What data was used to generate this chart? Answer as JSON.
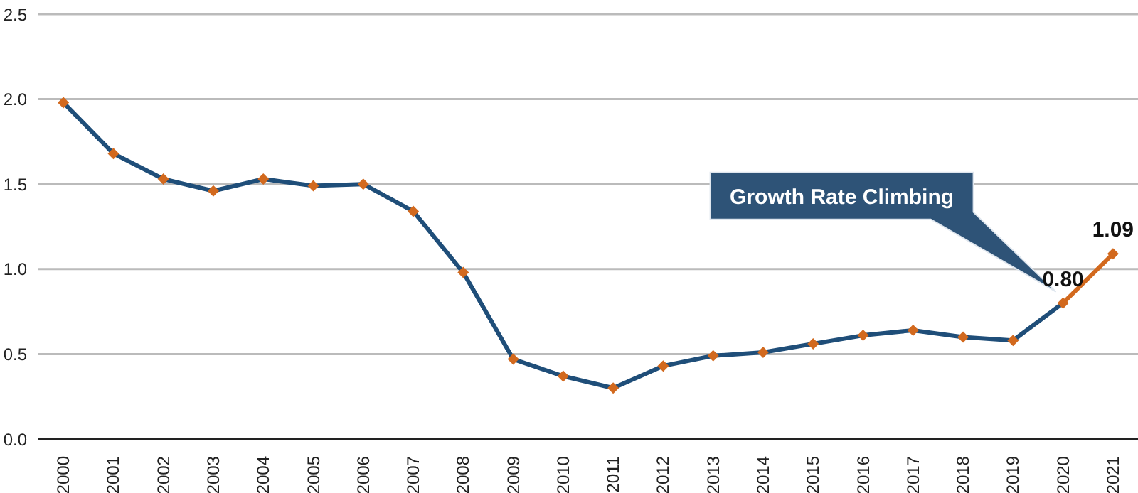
{
  "chart_data": {
    "type": "line",
    "categories": [
      "2000",
      "2001",
      "2002",
      "2003",
      "2004",
      "2005",
      "2006",
      "2007",
      "2008",
      "2009",
      "2010",
      "2011",
      "2012",
      "2013",
      "2014",
      "2015",
      "2016",
      "2017",
      "2018",
      "2019",
      "2020",
      "2021"
    ],
    "series": [
      {
        "type": "line",
        "marker": "none",
        "color": "#1f4e79",
        "values": [
          1.98,
          1.68,
          1.53,
          1.46,
          1.53,
          1.49,
          1.5,
          1.34,
          0.98,
          0.47,
          0.37,
          0.3,
          0.43,
          0.49,
          0.51,
          0.56,
          0.61,
          0.64,
          0.6,
          0.58,
          0.8,
          null
        ]
      },
      {
        "type": "line",
        "marker": "none",
        "color": "#d2691e",
        "values": [
          null,
          null,
          null,
          null,
          null,
          null,
          null,
          null,
          null,
          null,
          null,
          null,
          null,
          null,
          null,
          null,
          null,
          null,
          null,
          null,
          0.8,
          1.09
        ],
        "value_labels": [
          null,
          null,
          null,
          null,
          null,
          null,
          null,
          null,
          null,
          null,
          null,
          null,
          null,
          null,
          null,
          null,
          null,
          null,
          null,
          null,
          "0.80",
          "1.09"
        ]
      },
      {
        "type": "scatter",
        "color": "#d2691e",
        "values": [
          1.98,
          1.68,
          1.53,
          1.46,
          1.53,
          1.49,
          1.5,
          1.34,
          0.98,
          0.47,
          0.37,
          0.3,
          0.43,
          0.49,
          0.51,
          0.56,
          0.61,
          0.64,
          0.6,
          0.58,
          0.8,
          1.09
        ]
      }
    ],
    "ylim": [
      0,
      2.5
    ],
    "yticks": [
      {
        "value": 0,
        "label": "0.0"
      },
      {
        "value": 0.5,
        "label": "0.5"
      },
      {
        "value": 1,
        "label": "1.0"
      },
      {
        "value": 1.5,
        "label": "1.5"
      },
      {
        "value": 2,
        "label": "2.0"
      },
      {
        "value": 2.5,
        "label": "2.5"
      }
    ],
    "grid": "y",
    "marker": "diamond",
    "legend": false,
    "annotations": [
      "Growth Rate Climbing"
    ]
  }
}
